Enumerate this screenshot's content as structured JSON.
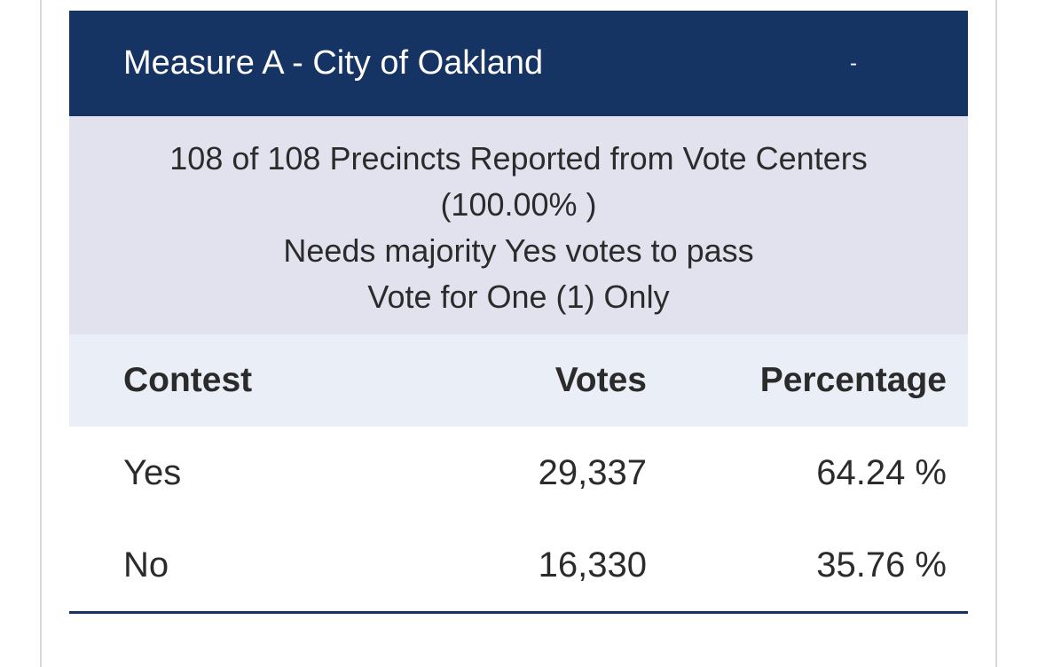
{
  "measure": {
    "title": "Measure A - City of Oakland",
    "toggle": "-"
  },
  "info": {
    "precincts": "108 of 108 Precincts Reported from Vote Centers",
    "percent_reported": "(100.00% )",
    "requirement": "Needs majority Yes votes to pass",
    "instruction": "Vote for One (1) Only"
  },
  "table": {
    "headers": {
      "contest": "Contest",
      "votes": "Votes",
      "percentage": "Percentage"
    },
    "rows": [
      {
        "contest": "Yes",
        "votes": "29,337",
        "percentage": "64.24 %"
      },
      {
        "contest": "No",
        "votes": "16,330",
        "percentage": "35.76 %"
      }
    ]
  },
  "colors": {
    "header_bg": "#163463",
    "info_bg": "#e2e2ef",
    "table_head_bg": "#e9eef7",
    "text": "#2b2b2b"
  }
}
